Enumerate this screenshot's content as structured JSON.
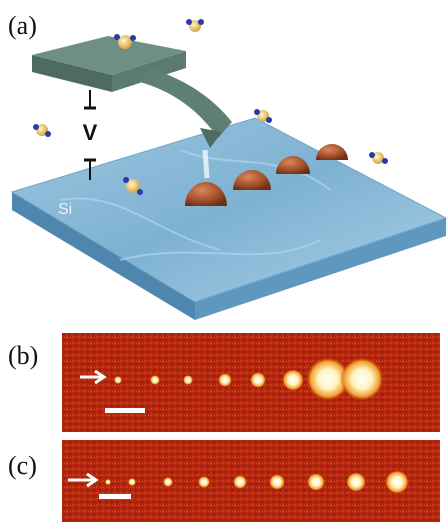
{
  "panels": [
    {
      "label": "(a)",
      "voltage_label": "V",
      "substrate_label": "Si"
    },
    {
      "label": "(b)"
    },
    {
      "label": "(c)"
    }
  ]
}
